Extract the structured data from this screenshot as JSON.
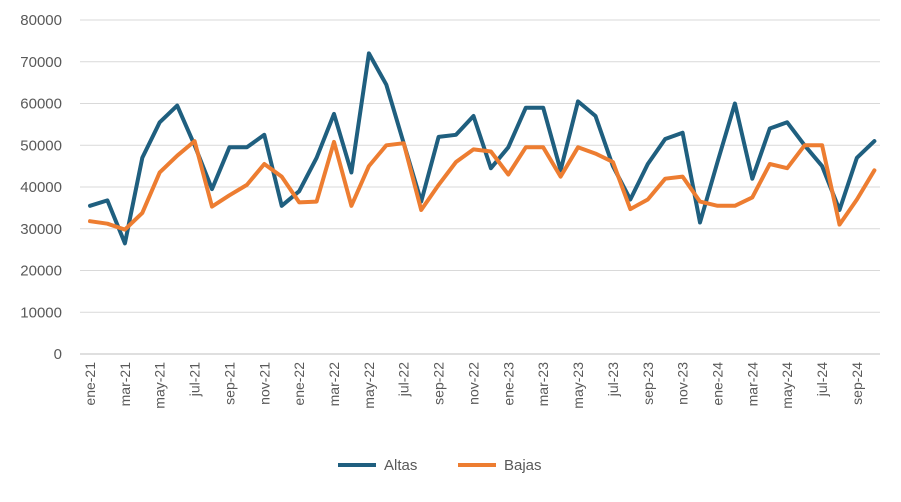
{
  "chart_data": {
    "type": "line",
    "title": "",
    "xlabel": "",
    "ylabel": "",
    "ylim": [
      0,
      80000
    ],
    "yticks": [
      0,
      10000,
      20000,
      30000,
      40000,
      50000,
      60000,
      70000,
      80000
    ],
    "grid": true,
    "legend_position": "bottom",
    "categories": [
      "ene-21",
      "feb-21",
      "mar-21",
      "abr-21",
      "may-21",
      "jun-21",
      "jul-21",
      "ago-21",
      "sep-21",
      "oct-21",
      "nov-21",
      "dic-21",
      "ene-22",
      "feb-22",
      "mar-22",
      "abr-22",
      "may-22",
      "jun-22",
      "jul-22",
      "ago-22",
      "sep-22",
      "oct-22",
      "nov-22",
      "dic-22",
      "ene-23",
      "feb-23",
      "mar-23",
      "abr-23",
      "may-23",
      "jun-23",
      "jul-23",
      "ago-23",
      "sep-23",
      "oct-23",
      "nov-23",
      "dic-23",
      "ene-24",
      "feb-24",
      "mar-24",
      "abr-24",
      "may-24",
      "jun-24",
      "jul-24",
      "ago-24",
      "sep-24",
      "oct-24"
    ],
    "tick_labels": [
      "ene-21",
      "mar-21",
      "may-21",
      "jul-21",
      "sep-21",
      "nov-21",
      "ene-22",
      "mar-22",
      "may-22",
      "jul-22",
      "sep-22",
      "nov-22",
      "ene-23",
      "mar-23",
      "may-23",
      "jul-23",
      "sep-23",
      "nov-23",
      "ene-24",
      "mar-24",
      "may-24",
      "jul-24",
      "sep-24"
    ],
    "series": [
      {
        "name": "Altas",
        "color": "#1f5f7f",
        "values": [
          35500,
          36800,
          26500,
          47000,
          55500,
          59500,
          50000,
          39500,
          49500,
          49500,
          52500,
          35500,
          39000,
          47000,
          57500,
          43500,
          72000,
          64500,
          50500,
          36500,
          52000,
          52500,
          57000,
          44500,
          49500,
          59000,
          59000,
          44000,
          60500,
          57000,
          45000,
          37000,
          45500,
          51500,
          53000,
          31500,
          46000,
          60000,
          42000,
          54000,
          55500,
          50000,
          45000,
          34500,
          47000,
          51000
        ]
      },
      {
        "name": "Bajas",
        "color": "#ed7d31",
        "values": [
          31800,
          31200,
          29800,
          33800,
          43500,
          47500,
          51000,
          35300,
          38000,
          40500,
          45500,
          42500,
          36300,
          36500,
          50800,
          35500,
          45000,
          50000,
          50500,
          34500,
          40500,
          46000,
          49000,
          48500,
          43000,
          49500,
          49500,
          42500,
          49500,
          48000,
          46000,
          34700,
          37000,
          42000,
          42500,
          36500,
          35500,
          35500,
          37500,
          45500,
          44500,
          50000,
          50000,
          31000,
          37000,
          44000
        ]
      }
    ]
  }
}
